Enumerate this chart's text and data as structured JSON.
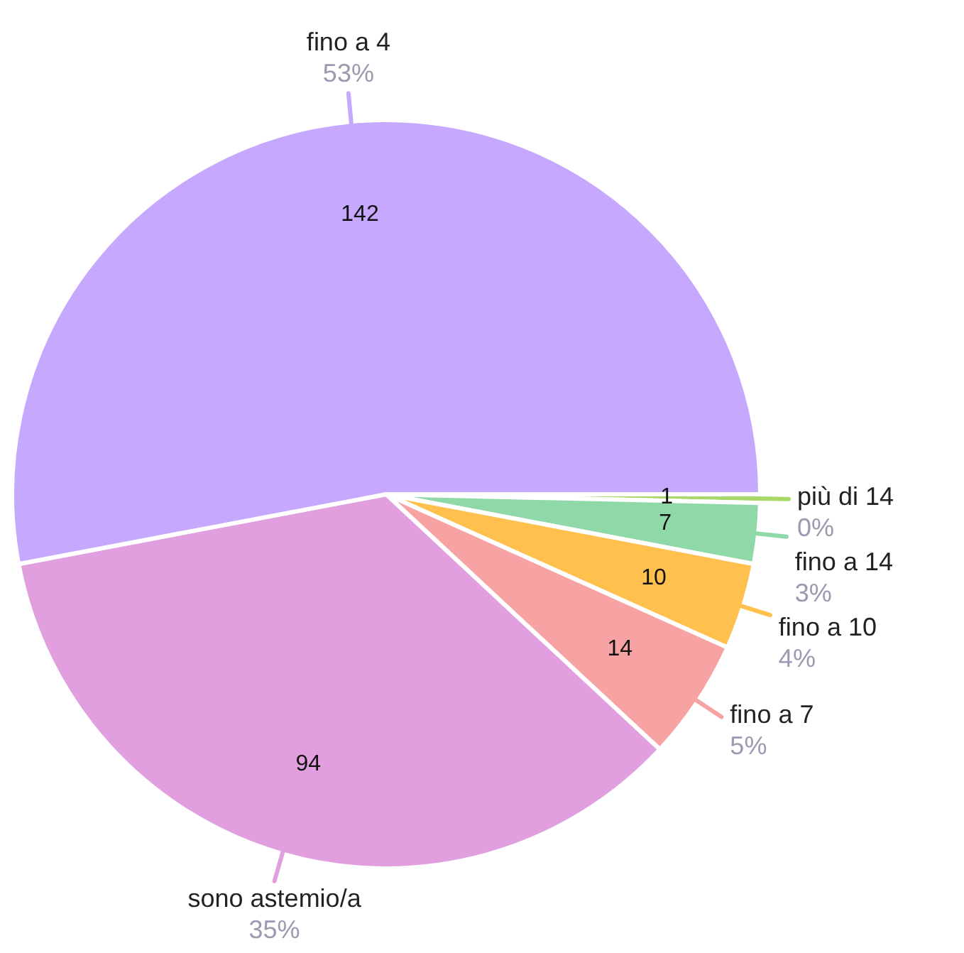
{
  "chart_data": {
    "type": "pie",
    "categories": [
      "più di 14",
      "fino a 14",
      "fino a 10",
      "fino a 7",
      "sono astemio/a",
      "fino a 4"
    ],
    "values": [
      1,
      7,
      10,
      14,
      94,
      142
    ],
    "colors": [
      "#a8d86a",
      "#8fd9a8",
      "#ffc04d",
      "#f8a3a3",
      "#e19fe0",
      "#c6a8fe"
    ],
    "data_labels": true,
    "annotations": [
      "0%",
      "3%",
      "4%",
      "5%",
      "35%",
      "53%"
    ],
    "legend": false
  }
}
